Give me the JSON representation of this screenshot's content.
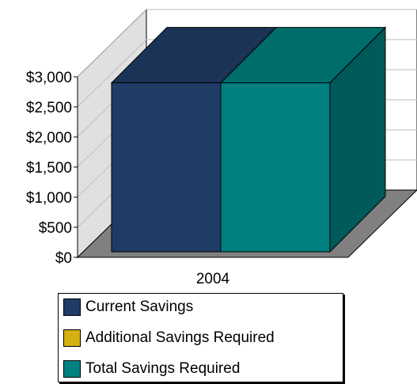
{
  "chart_data": {
    "type": "bar",
    "title": "",
    "xlabel": "",
    "ylabel": "",
    "categories": [
      "2004"
    ],
    "series": [
      {
        "name": "Current Savings",
        "values": [
          2900
        ],
        "color": "#1F3C66"
      },
      {
        "name": "Additional Savings Required",
        "values": [
          0
        ],
        "color": "#D4B012"
      },
      {
        "name": "Total Savings Required",
        "values": [
          2900
        ],
        "color": "#008080"
      }
    ],
    "ylim": [
      0,
      3000
    ],
    "yticks": [
      "$0",
      "$500",
      "$1,000",
      "$1,500",
      "$2,000",
      "$2,500",
      "$3,000"
    ],
    "grid": true,
    "legend_position": "bottom",
    "style": "3d"
  }
}
